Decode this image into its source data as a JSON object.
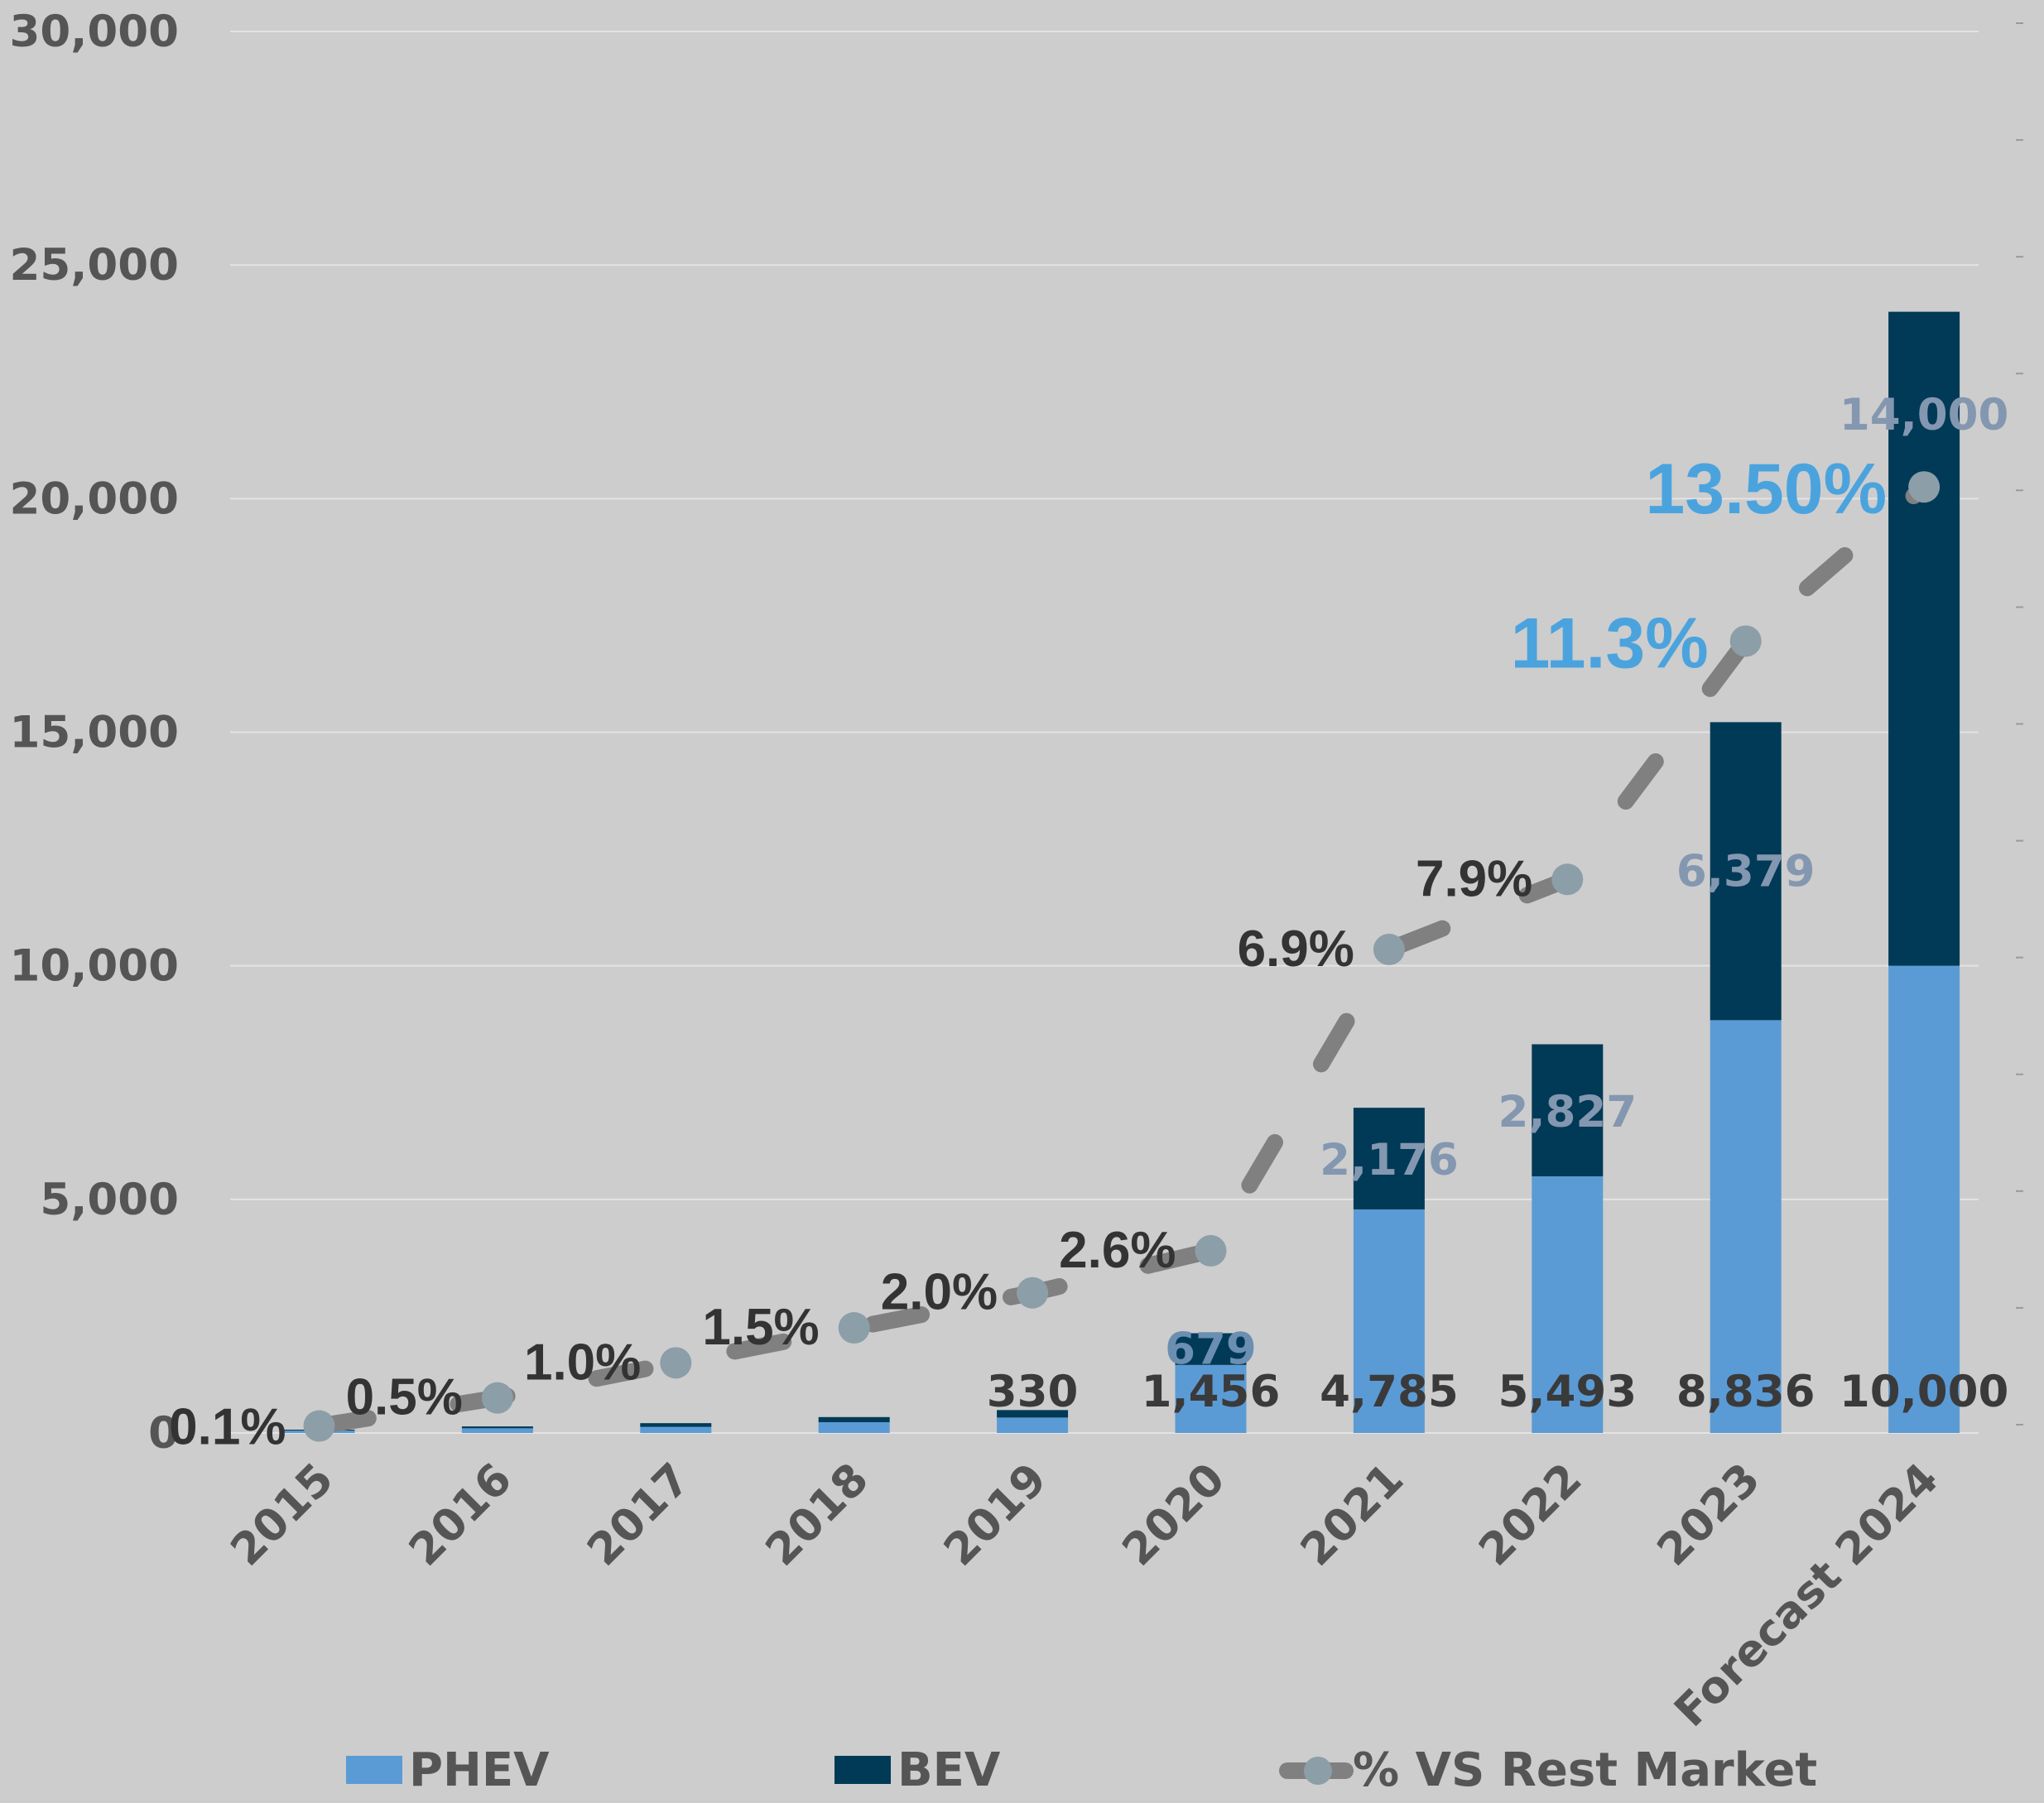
{
  "chart_data": {
    "type": "bar",
    "stacked": true,
    "categories": [
      "2015",
      "2016",
      "2017",
      "2018",
      "2019",
      "2020",
      "2021",
      "2022",
      "2023",
      "Forecast 2024"
    ],
    "series": [
      {
        "name": "PHEV",
        "values": [
          50,
          100,
          130,
          230,
          330,
          1456,
          4785,
          5493,
          8836,
          10000
        ],
        "labels": [
          "",
          "",
          "",
          "",
          "330",
          "1,456",
          "4,785",
          "5,493",
          "8,836",
          "10,000"
        ],
        "color": "#5b9bd5"
      },
      {
        "name": "BEV",
        "values": [
          20,
          40,
          80,
          110,
          160,
          679,
          2176,
          2827,
          6379,
          14000
        ],
        "labels": [
          "",
          "",
          "",
          "",
          "",
          "679",
          "2,176",
          "2,827",
          "6,379",
          "14,000"
        ],
        "color": "#003a57"
      }
    ],
    "line_series": {
      "name": "% VS Rest Market",
      "values": [
        0.1,
        0.5,
        1.0,
        1.5,
        2.0,
        2.6,
        6.9,
        7.9,
        11.3,
        13.5
      ],
      "labels": [
        "0.1%",
        "0.5%",
        "1.0%",
        "1.5%",
        "2.0%",
        "2.6%",
        "6.9%",
        "7.9%",
        "11.3%",
        "13.50%"
      ],
      "color": "#808080",
      "marker_color": "#8c9ea8",
      "highlight_color": "#4ba3de",
      "label_color": "#333333",
      "scale_max": 20
    },
    "yticks": [
      "0",
      "5,000",
      "10,000",
      "15,000",
      "20,000",
      "25,000",
      "30,000"
    ],
    "ylim": [
      0,
      30000
    ],
    "grid": true,
    "legend": "bottom",
    "colors": {
      "background": "#cdcdcd",
      "phev": "#5b9bd5",
      "bev": "#003a57",
      "bev_label": "#8497b0",
      "phev_label": "#3a3a3a",
      "line": "#808080",
      "marker": "#8c9ea8",
      "grid": "#e3e3e3"
    }
  }
}
